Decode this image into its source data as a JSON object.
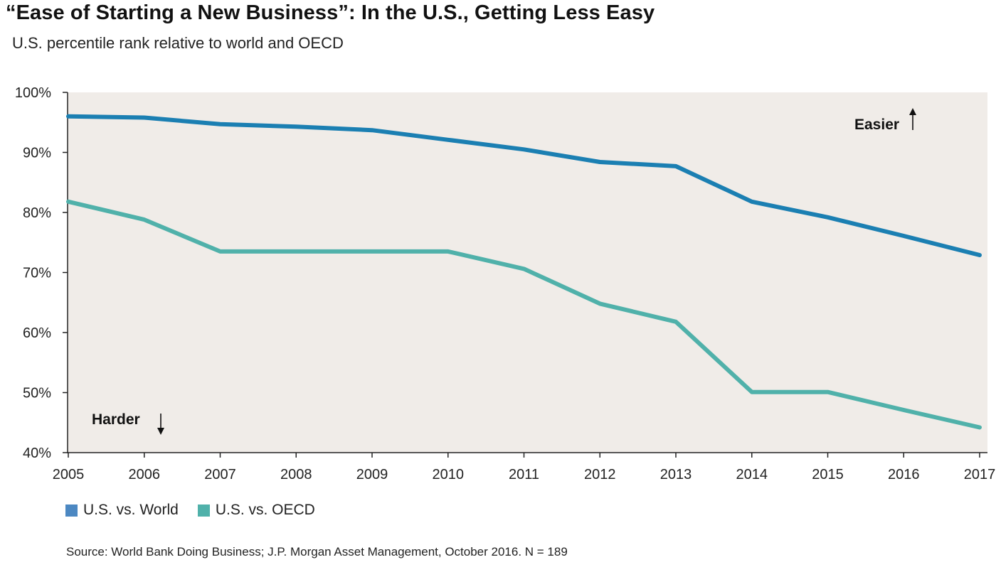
{
  "header": {
    "title": "“Ease of Starting a New Business”: In the U.S., Getting Less Easy",
    "subtitle": "U.S. percentile rank relative to world and OECD"
  },
  "chart_data": {
    "type": "line",
    "x": [
      "2005",
      "2006",
      "2007",
      "2008",
      "2009",
      "2010",
      "2011",
      "2012",
      "2013",
      "2014",
      "2015",
      "2016",
      "2017"
    ],
    "ylim": [
      40,
      100
    ],
    "yticks": [
      "40%",
      "50%",
      "60%",
      "70%",
      "80%",
      "90%",
      "100%"
    ],
    "grid": false,
    "legend_position": "bottom-left",
    "series": [
      {
        "name": "U.S. vs. World",
        "color": "#1b7fb2",
        "values": [
          96,
          95.8,
          94.7,
          94.3,
          93.7,
          92.1,
          90.5,
          88.4,
          87.7,
          81.8,
          79.2,
          76.1,
          72.9
        ]
      },
      {
        "name": "U.S. vs. OECD",
        "color": "#50b1aa",
        "values": [
          81.8,
          78.8,
          73.5,
          73.5,
          73.5,
          73.5,
          70.6,
          64.8,
          61.8,
          50.1,
          50.1,
          47.1,
          44.2
        ]
      }
    ],
    "annotations": {
      "easier": "Easier",
      "harder": "Harder"
    }
  },
  "colors": {
    "plot_background": "#f0ece8",
    "legend_world_swatch": "#4c88c2",
    "legend_oecd_swatch": "#50b1aa"
  },
  "footer": {
    "source": "Source: World Bank Doing Business; J.P. Morgan Asset Management, October 2016. N = 189"
  }
}
